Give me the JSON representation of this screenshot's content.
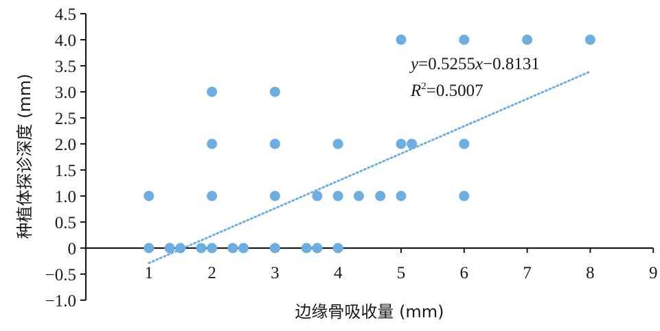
{
  "chart_data": {
    "type": "scatter",
    "title": "",
    "xlabel": "边缘骨吸收量 (mm)",
    "ylabel": "种植体探诊深度 (mm)",
    "xlim": [
      0,
      9
    ],
    "ylim": [
      -1.0,
      4.5
    ],
    "x_ticks": [
      "1",
      "2",
      "3",
      "4",
      "5",
      "6",
      "7",
      "8",
      "9"
    ],
    "y_ticks": [
      "4.5",
      "4.0",
      "3.5",
      "3.0",
      "2.5",
      "2.0",
      "1.5",
      "1.0",
      "0.5",
      "0",
      "−0.5",
      "−1.0"
    ],
    "grid": false,
    "marker_color": "#6daee0",
    "trendline_color": "#6daee0",
    "points": [
      {
        "x": 1.0,
        "y": 1.0
      },
      {
        "x": 1.0,
        "y": 0.0
      },
      {
        "x": 1.33,
        "y": 0.0
      },
      {
        "x": 1.5,
        "y": 0.0
      },
      {
        "x": 1.83,
        "y": 0.0
      },
      {
        "x": 2.0,
        "y": 0.0
      },
      {
        "x": 2.0,
        "y": 1.0
      },
      {
        "x": 2.0,
        "y": 2.0
      },
      {
        "x": 2.0,
        "y": 3.0
      },
      {
        "x": 2.33,
        "y": 0.0
      },
      {
        "x": 2.5,
        "y": 0.0
      },
      {
        "x": 3.0,
        "y": 0.0
      },
      {
        "x": 3.0,
        "y": 1.0
      },
      {
        "x": 3.0,
        "y": 2.0
      },
      {
        "x": 3.0,
        "y": 3.0
      },
      {
        "x": 3.5,
        "y": 0.0
      },
      {
        "x": 3.67,
        "y": 0.0
      },
      {
        "x": 3.67,
        "y": 1.0
      },
      {
        "x": 4.0,
        "y": 0.0
      },
      {
        "x": 4.0,
        "y": 1.0
      },
      {
        "x": 4.0,
        "y": 2.0
      },
      {
        "x": 4.33,
        "y": 1.0
      },
      {
        "x": 4.67,
        "y": 1.0
      },
      {
        "x": 5.0,
        "y": 1.0
      },
      {
        "x": 5.0,
        "y": 2.0
      },
      {
        "x": 5.17,
        "y": 2.0
      },
      {
        "x": 5.0,
        "y": 4.0
      },
      {
        "x": 6.0,
        "y": 1.0
      },
      {
        "x": 6.0,
        "y": 2.0
      },
      {
        "x": 6.0,
        "y": 4.0
      },
      {
        "x": 7.0,
        "y": 4.0
      },
      {
        "x": 8.0,
        "y": 4.0
      }
    ],
    "trendline": {
      "slope": 0.5255,
      "intercept": -0.8131,
      "x_range": [
        1,
        8
      ],
      "equation_y": "y",
      "equation_rest": "=0.5255",
      "equation_x": "x",
      "equation_tail": "−0.8131",
      "r2_r": "R",
      "r2_sup": "2",
      "r2_value": "=0.5007"
    }
  }
}
